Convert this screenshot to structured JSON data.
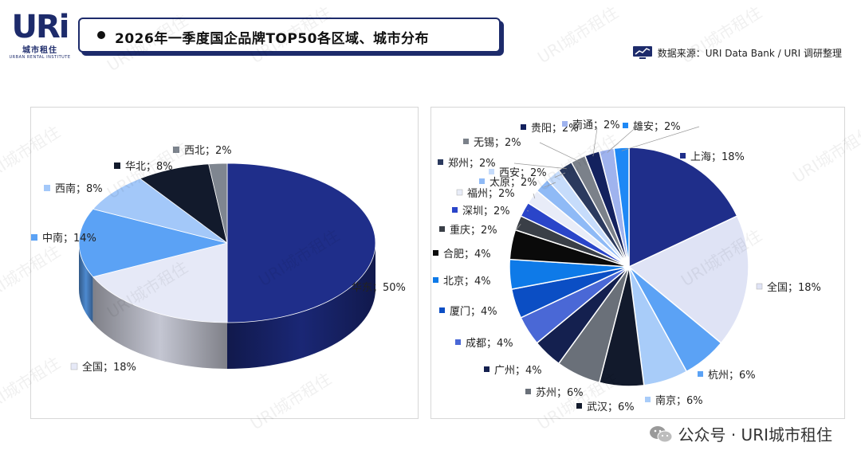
{
  "brand": {
    "mark": "URi",
    "cn": "城市租住",
    "en": "URBAN RENTAL INSTITUTE"
  },
  "header": {
    "title": "2026年一季度国企品牌TOP50各区域、城市分布"
  },
  "source": {
    "text": "数据来源：URI Data Bank / URI 调研整理"
  },
  "watermark": {
    "text": "URI城市租住"
  },
  "footer": {
    "wechat": "公众号 · URI城市租住"
  },
  "colors": {
    "navy": "#1f2e8a",
    "dark": "#121a2c",
    "border": "#1d2b6b"
  },
  "chart_data": [
    {
      "type": "pie",
      "title": "",
      "style": "3d",
      "series": [
        {
          "name": "华东",
          "value": 50,
          "label": "华东；50%",
          "color": "#1f2e8a"
        },
        {
          "name": "全国",
          "value": 18,
          "label": "全国；18%",
          "color": "#e6e9f7"
        },
        {
          "name": "中南",
          "value": 14,
          "label": "中南；14%",
          "color": "#5ba2f5"
        },
        {
          "name": "西南",
          "value": 8,
          "label": "西南；8%",
          "color": "#a3c8f9"
        },
        {
          "name": "华北",
          "value": 8,
          "label": "华北；8%",
          "color": "#121a2c"
        },
        {
          "name": "西北",
          "value": 2,
          "label": "西北；2%",
          "color": "#7f8690"
        }
      ]
    },
    {
      "type": "pie",
      "title": "",
      "series": [
        {
          "name": "上海",
          "value": 18,
          "label": "上海；18%",
          "color": "#1f2e8a"
        },
        {
          "name": "全国",
          "value": 18,
          "label": "全国；18%",
          "color": "#dfe3f5"
        },
        {
          "name": "杭州",
          "value": 6,
          "label": "杭州；6%",
          "color": "#5ba2f5"
        },
        {
          "name": "南京",
          "value": 6,
          "label": "南京；6%",
          "color": "#a8ccf9"
        },
        {
          "name": "武汉",
          "value": 6,
          "label": "武汉；6%",
          "color": "#121a2c"
        },
        {
          "name": "苏州",
          "value": 6,
          "label": "苏州；6%",
          "color": "#6a7079"
        },
        {
          "name": "广州",
          "value": 4,
          "label": "广州；4%",
          "color": "#14204f"
        },
        {
          "name": "成都",
          "value": 4,
          "label": "成都；4%",
          "color": "#4a68d6"
        },
        {
          "name": "厦门",
          "value": 4,
          "label": "厦门；4%",
          "color": "#0b4ec4"
        },
        {
          "name": "北京",
          "value": 4,
          "label": "北京；4%",
          "color": "#0e7ae8"
        },
        {
          "name": "合肥",
          "value": 4,
          "label": "合肥；4%",
          "color": "#0a0a0a"
        },
        {
          "name": "重庆",
          "value": 2,
          "label": "重庆；2%",
          "color": "#3a3f47"
        },
        {
          "name": "深圳",
          "value": 2,
          "label": "深圳；2%",
          "color": "#2a45c9"
        },
        {
          "name": "福州",
          "value": 2,
          "label": "福州；2%",
          "color": "#e8ecf8"
        },
        {
          "name": "太原",
          "value": 2,
          "label": "太原；2%",
          "color": "#8fbaf6"
        },
        {
          "name": "西安",
          "value": 2,
          "label": "西安；2%",
          "color": "#c6dcfb"
        },
        {
          "name": "郑州",
          "value": 2,
          "label": "郑州；2%",
          "color": "#2b3a5e"
        },
        {
          "name": "无锡",
          "value": 2,
          "label": "无锡；2%",
          "color": "#7b818a"
        },
        {
          "name": "贵阳",
          "value": 2,
          "label": "贵阳；2%",
          "color": "#13215e"
        },
        {
          "name": "南通",
          "value": 2,
          "label": "南通；2%",
          "color": "#9fb3ee"
        },
        {
          "name": "雄安",
          "value": 2,
          "label": "雄安；2%",
          "color": "#1e88f5"
        }
      ]
    }
  ]
}
